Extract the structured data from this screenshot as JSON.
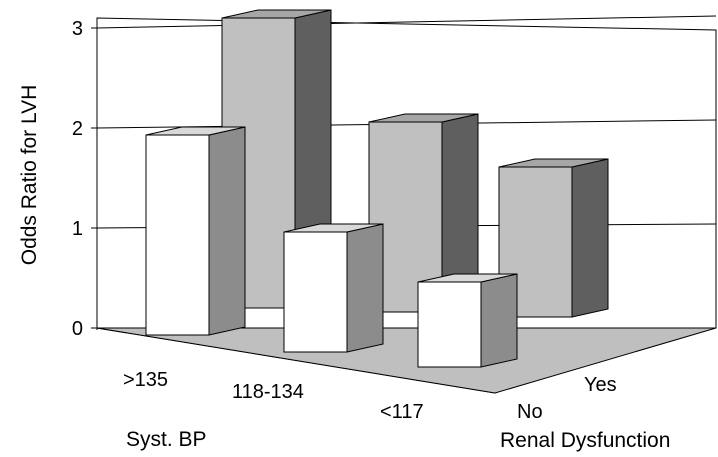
{
  "chart_data": {
    "type": "bar",
    "subtype": "3d-grouped",
    "title": "",
    "xlabel": "Syst. BP",
    "ylabel": "Odds Ratio for LVH",
    "zlabel": "Renal Dysfunction",
    "categories": [
      ">135",
      "118-134",
      "<117"
    ],
    "series": [
      {
        "name": "No",
        "values": [
          2.0,
          1.2,
          0.85
        ]
      },
      {
        "name": "Yes",
        "values": [
          2.9,
          1.9,
          1.5
        ]
      }
    ],
    "yticks": [
      "0",
      "1",
      "2",
      "3"
    ],
    "ylim": [
      0,
      3
    ],
    "grid": true,
    "colors": {
      "No_front": "#ffffff",
      "No_top": "#d9d9d9",
      "No_side": "#8c8c8c",
      "Yes_front": "#c0c0c0",
      "Yes_top": "#a6a6a6",
      "Yes_side": "#5f5f5f",
      "floor": "#bfbfbf"
    }
  }
}
